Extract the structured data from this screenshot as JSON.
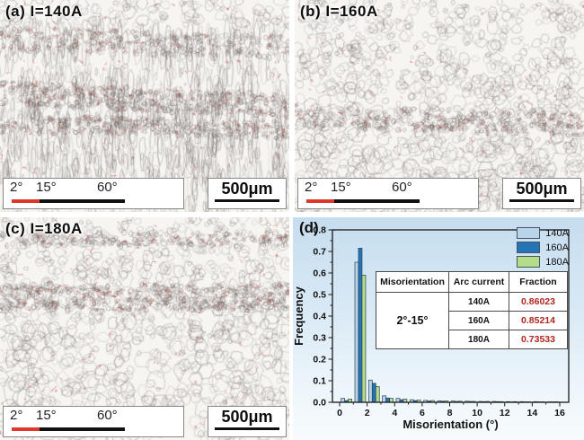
{
  "panels": [
    {
      "id": "a",
      "label": "(a) I=140A"
    },
    {
      "id": "b",
      "label": "(b) I=160A"
    },
    {
      "id": "c",
      "label": "(c) I=180A"
    },
    {
      "id": "d",
      "label": "(d)"
    }
  ],
  "scalebar": {
    "deg_labels": [
      "2°",
      "15°",
      "60°"
    ],
    "length_label": "500μm",
    "low_angle_color": "#e0372c",
    "high_angle_color": "#111111"
  },
  "chart_data": {
    "type": "bar",
    "title": "",
    "xlabel": "Misorientation (°)",
    "ylabel": "Frequency",
    "xlim": [
      0,
      16
    ],
    "ylim": [
      0,
      0.8
    ],
    "xticks": [
      0,
      2,
      4,
      6,
      8,
      10,
      12,
      14,
      16
    ],
    "ytick_step": 0.1,
    "grid": false,
    "legend_position": "top-right",
    "bin_width": 1,
    "bin_start": 0,
    "bar_edge_color": "#2e3f50",
    "series": [
      {
        "name": "140A",
        "color": "#b9d3e8",
        "values": [
          0.018,
          0.65,
          0.103,
          0.03,
          0.018,
          0.012,
          0.009,
          0.007,
          0.006,
          0.005,
          0.004,
          0.004,
          0.003,
          0.003,
          0.003,
          0.002
        ]
      },
      {
        "name": "160A",
        "color": "#2474b6",
        "values": [
          0.008,
          0.715,
          0.088,
          0.02,
          0.012,
          0.008,
          0.006,
          0.005,
          0.004,
          0.004,
          0.003,
          0.003,
          0.002,
          0.002,
          0.002,
          0.002
        ]
      },
      {
        "name": "180A",
        "color": "#b5dc86",
        "values": [
          0.015,
          0.59,
          0.073,
          0.018,
          0.015,
          0.01,
          0.008,
          0.006,
          0.005,
          0.004,
          0.004,
          0.003,
          0.003,
          0.002,
          0.002,
          0.002
        ]
      }
    ],
    "inset_table": {
      "headers": [
        "Misorientation",
        "Arc current",
        "Fraction"
      ],
      "misorientation_range": "2°-15°",
      "rows": [
        {
          "arc_current": "140A",
          "fraction": "0.86023"
        },
        {
          "arc_current": "160A",
          "fraction": "0.85214"
        },
        {
          "arc_current": "180A",
          "fraction": "0.73533"
        }
      ],
      "fraction_color": "#b2261d"
    }
  }
}
